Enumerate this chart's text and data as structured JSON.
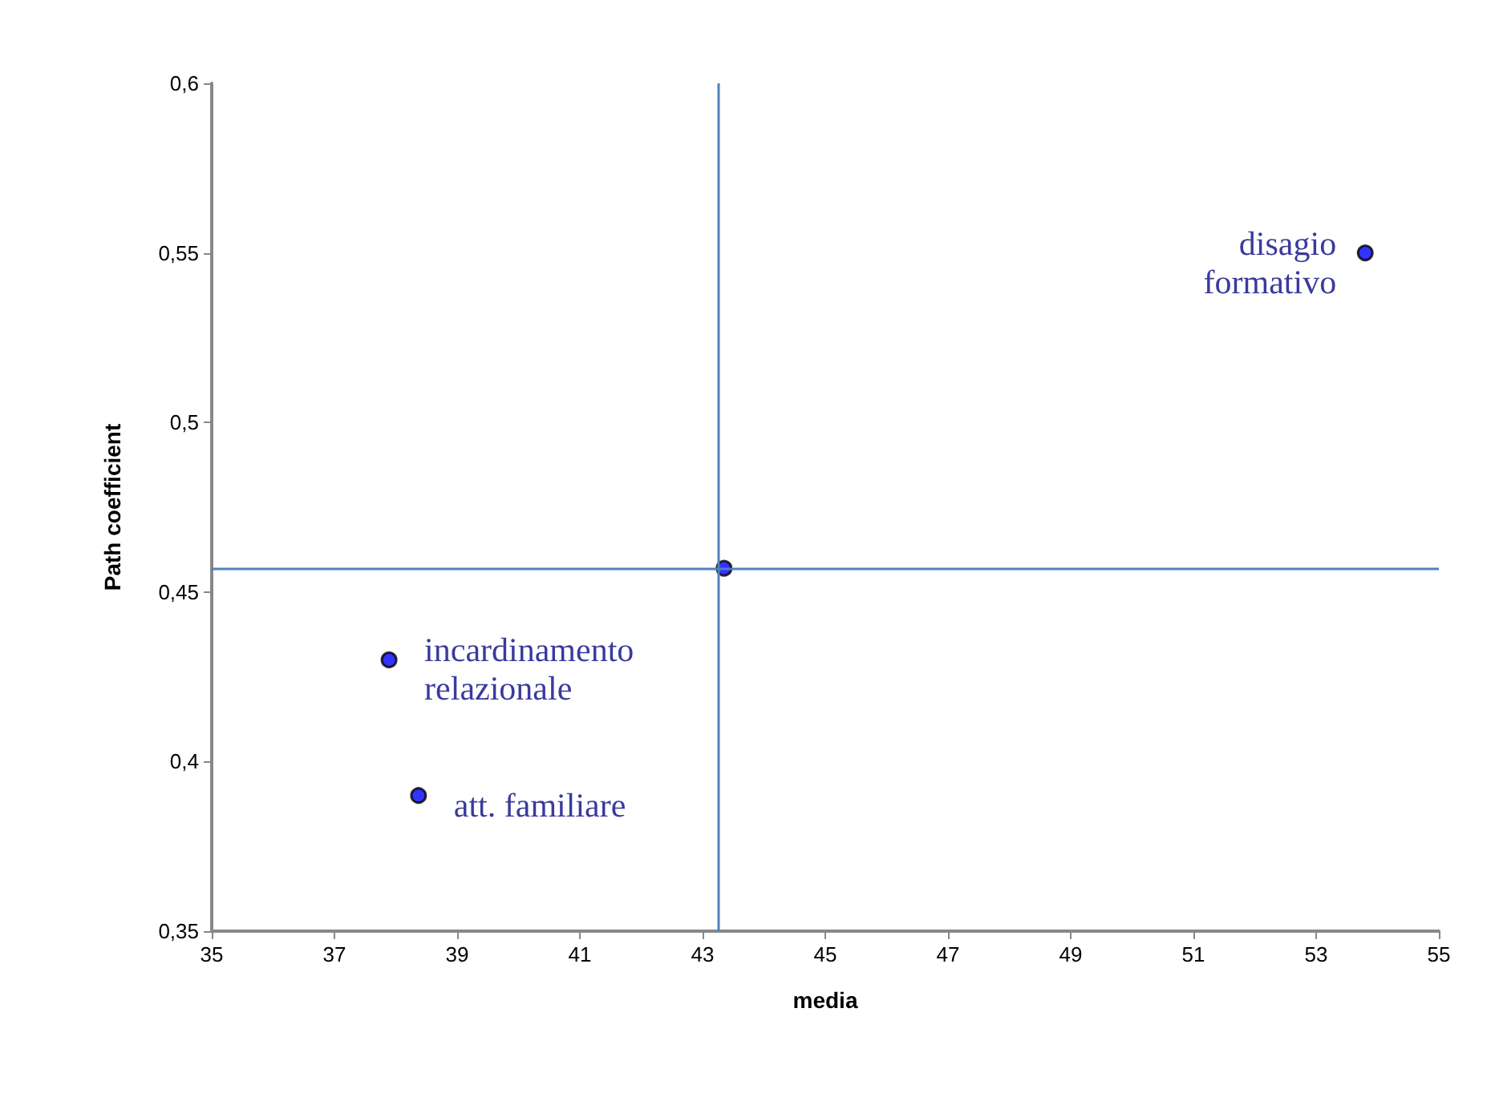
{
  "chart_data": {
    "type": "scatter",
    "xlabel": "media",
    "ylabel": "Path coefficient",
    "x": [
      37.89,
      38.37,
      43.35,
      53.8
    ],
    "series": [
      {
        "color": "#0000ff",
        "values": [
          0.43,
          0.39,
          0.457,
          0.55
        ]
      }
    ],
    "marker": "circle",
    "grid": false,
    "xlim": [
      35,
      55
    ],
    "xticks": [
      35,
      37,
      39,
      41,
      43,
      45,
      47,
      49,
      51,
      53,
      55
    ],
    "ylim": [
      0.35,
      0.6
    ],
    "yticks": [
      {
        "value": 0.35,
        "label": "0,35"
      },
      {
        "value": 0.4,
        "label": "0,4"
      },
      {
        "value": 0.45,
        "label": "0,45"
      },
      {
        "value": 0.5,
        "label": "0,5"
      },
      {
        "value": 0.55,
        "label": "0,55"
      },
      {
        "value": 0.6,
        "label": "0,6"
      }
    ],
    "ref_lines": [
      {
        "axis": "x",
        "value": 43.25,
        "color": "#4f81bd"
      },
      {
        "axis": "y",
        "value": 0.457,
        "color": "#4f81bd"
      }
    ],
    "annotations": [
      {
        "text": "incardinamento\nrelazionale",
        "x": 37.89,
        "y": 0.43
      },
      {
        "text": "att. familiare",
        "x": 38.37,
        "y": 0.39
      },
      {
        "text": "disagio\nformativo",
        "x": 53.8,
        "y": 0.55
      }
    ]
  }
}
